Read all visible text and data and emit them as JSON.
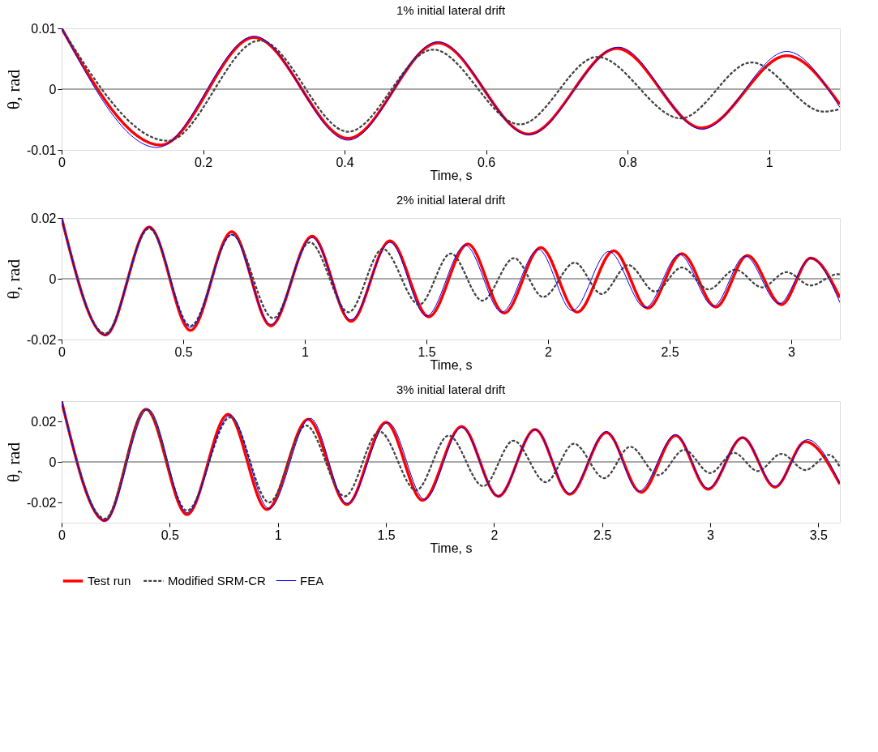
{
  "chart_data": [
    {
      "type": "line",
      "title": "1% initial lateral drift",
      "xlabel": "Time, s",
      "ylabel": "θ, rad",
      "xlim": [
        0,
        1.1
      ],
      "xticks": [
        0,
        0.2,
        0.4,
        0.6,
        0.8,
        1
      ],
      "ylim": [
        -0.01,
        0.01
      ],
      "yticks": [
        -0.01,
        0,
        0.01
      ],
      "grid": false,
      "legend": "bottom",
      "ref_lines": [
        {
          "axis": "y",
          "value": 0,
          "color": "#555555"
        }
      ],
      "series": [
        {
          "name": "Test run",
          "color": "#ff0000",
          "line_style": "solid",
          "x": [
            0,
            0.14,
            0.272,
            0.405,
            0.532,
            0.66,
            0.785,
            0.905,
            1.025,
            1.1
          ],
          "values": [
            0.01,
            -0.0092,
            0.0085,
            -0.0081,
            0.0076,
            -0.0074,
            0.0067,
            -0.0064,
            0.0055,
            -0.0025
          ]
        },
        {
          "name": "Modified SRM-CR",
          "color": "#404040",
          "line_style": "dashed",
          "x": [
            0,
            0.15,
            0.28,
            0.405,
            0.525,
            0.648,
            0.757,
            0.875,
            0.975,
            1.077,
            1.1
          ],
          "values": [
            0.01,
            -0.0085,
            0.008,
            -0.007,
            0.0065,
            -0.0058,
            0.0053,
            -0.0048,
            0.0044,
            -0.0037,
            -0.0033
          ]
        },
        {
          "name": "FEA",
          "color": "#0000ff",
          "line_style": "solid",
          "x": [
            0,
            0.135,
            0.272,
            0.405,
            0.532,
            0.66,
            0.787,
            0.905,
            1.025,
            1.1
          ],
          "values": [
            0.01,
            -0.0096,
            0.0087,
            -0.0084,
            0.0078,
            -0.0075,
            0.0069,
            -0.0066,
            0.0062,
            -0.003
          ]
        }
      ]
    },
    {
      "type": "line",
      "title": "2% initial lateral drift",
      "xlabel": "Time, s",
      "ylabel": "θ, rad",
      "xlim": [
        0,
        3.2
      ],
      "xticks": [
        0,
        0.5,
        1,
        1.5,
        2,
        2.5,
        3
      ],
      "ylim": [
        -0.02,
        0.02
      ],
      "yticks": [
        -0.02,
        0,
        0.02
      ],
      "grid": false,
      "legend": "bottom",
      "ref_lines": [
        {
          "axis": "y",
          "value": 0,
          "color": "#555555"
        }
      ],
      "series": [
        {
          "name": "Test run",
          "color": "#ff0000",
          "line_style": "solid",
          "x": [
            0,
            0.18,
            0.36,
            0.53,
            0.7,
            0.86,
            1.03,
            1.19,
            1.35,
            1.51,
            1.67,
            1.82,
            1.97,
            2.12,
            2.27,
            2.41,
            2.55,
            2.69,
            2.82,
            2.96,
            3.08,
            3.2
          ],
          "values": [
            0.02,
            -0.0185,
            0.017,
            -0.017,
            0.0155,
            -0.0155,
            0.014,
            -0.014,
            0.0125,
            -0.0125,
            0.0115,
            -0.0113,
            0.0103,
            -0.011,
            0.0092,
            -0.0097,
            0.0083,
            -0.0093,
            0.0077,
            -0.0085,
            0.0068,
            -0.0062
          ]
        },
        {
          "name": "Modified SRM-CR",
          "color": "#404040",
          "line_style": "dashed",
          "x": [
            0,
            0.18,
            0.36,
            0.53,
            0.7,
            0.87,
            1.02,
            1.18,
            1.32,
            1.47,
            1.6,
            1.73,
            1.86,
            1.98,
            2.11,
            2.22,
            2.33,
            2.44,
            2.55,
            2.66,
            2.77,
            2.88,
            2.98,
            3.08,
            3.19,
            3.2
          ],
          "values": [
            0.02,
            -0.018,
            0.0165,
            -0.0155,
            0.0145,
            -0.013,
            0.012,
            -0.011,
            0.0098,
            -0.0085,
            0.0083,
            -0.0072,
            0.0068,
            -0.006,
            0.0053,
            -0.005,
            0.0045,
            -0.0042,
            0.0037,
            -0.0035,
            0.003,
            -0.0028,
            0.0022,
            -0.0022,
            0.0015,
            0.0014
          ]
        },
        {
          "name": "FEA",
          "color": "#0000ff",
          "line_style": "solid",
          "x": [
            0,
            0.18,
            0.36,
            0.53,
            0.7,
            0.86,
            1.03,
            1.19,
            1.35,
            1.5,
            1.66,
            1.81,
            1.96,
            2.1,
            2.25,
            2.4,
            2.54,
            2.68,
            2.81,
            2.95,
            3.08,
            3.2
          ],
          "values": [
            0.02,
            -0.0185,
            0.017,
            -0.016,
            0.0145,
            -0.015,
            0.0135,
            -0.0135,
            0.012,
            -0.0123,
            0.011,
            -0.011,
            0.0097,
            -0.0105,
            0.009,
            -0.0095,
            0.008,
            -0.009,
            0.0075,
            -0.0082,
            0.0068,
            -0.0078
          ]
        }
      ]
    },
    {
      "type": "line",
      "title": "3% initial lateral drift",
      "xlabel": "Time, s",
      "ylabel": "θ, rad",
      "xlim": [
        0,
        3.6
      ],
      "xticks": [
        0,
        0.5,
        1,
        1.5,
        2,
        2.5,
        3,
        3.5
      ],
      "ylim": [
        -0.03,
        0.03
      ],
      "yticks": [
        -0.02,
        0,
        0.02
      ],
      "grid": false,
      "legend": "bottom",
      "ref_lines": [
        {
          "axis": "y",
          "value": 0,
          "color": "#555555"
        }
      ],
      "series": [
        {
          "name": "Test run",
          "color": "#ff0000",
          "line_style": "solid",
          "x": [
            0,
            0.2,
            0.39,
            0.58,
            0.77,
            0.95,
            1.14,
            1.32,
            1.5,
            1.67,
            1.85,
            2.02,
            2.19,
            2.35,
            2.52,
            2.68,
            2.84,
            2.99,
            3.15,
            3.3,
            3.44,
            3.6
          ],
          "values": [
            0.03,
            -0.029,
            0.026,
            -0.026,
            0.0235,
            -0.0235,
            0.021,
            -0.021,
            0.0195,
            -0.019,
            0.0175,
            -0.017,
            0.016,
            -0.016,
            0.0145,
            -0.015,
            0.013,
            -0.0135,
            0.012,
            -0.0125,
            0.01,
            -0.011
          ]
        },
        {
          "name": "Modified SRM-CR",
          "color": "#404040",
          "line_style": "dashed",
          "x": [
            0,
            0.2,
            0.39,
            0.58,
            0.78,
            0.96,
            1.13,
            1.31,
            1.47,
            1.64,
            1.79,
            1.95,
            2.09,
            2.24,
            2.37,
            2.51,
            2.63,
            2.76,
            2.88,
            3.0,
            3.11,
            3.22,
            3.33,
            3.44,
            3.55,
            3.6
          ],
          "values": [
            0.03,
            -0.028,
            0.026,
            -0.024,
            0.022,
            -0.02,
            0.018,
            -0.017,
            0.015,
            -0.014,
            0.013,
            -0.012,
            0.0105,
            -0.01,
            0.009,
            -0.008,
            0.0075,
            -0.0065,
            0.006,
            -0.0055,
            0.0045,
            -0.0045,
            0.004,
            -0.004,
            0.0035,
            -0.0025
          ]
        },
        {
          "name": "FEA",
          "color": "#0000ff",
          "line_style": "solid",
          "x": [
            0,
            0.2,
            0.4,
            0.58,
            0.78,
            0.96,
            1.15,
            1.32,
            1.51,
            1.68,
            1.85,
            2.02,
            2.19,
            2.35,
            2.52,
            2.67,
            2.84,
            2.99,
            3.15,
            3.3,
            3.45,
            3.6
          ],
          "values": [
            0.03,
            -0.029,
            0.026,
            -0.025,
            0.023,
            -0.023,
            0.0215,
            -0.0205,
            0.0195,
            -0.0185,
            0.017,
            -0.017,
            0.016,
            -0.0155,
            0.015,
            -0.0145,
            0.0135,
            -0.013,
            0.012,
            -0.012,
            0.011,
            -0.0105
          ]
        }
      ]
    }
  ]
}
